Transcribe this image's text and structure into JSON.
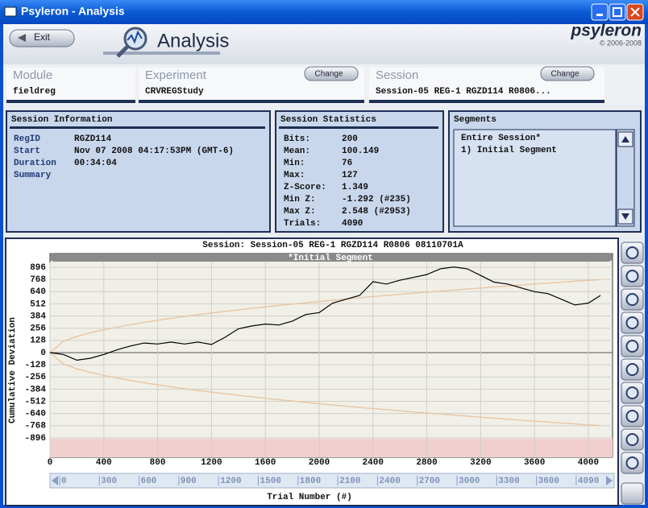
{
  "window": {
    "title": "Psyleron - Analysis"
  },
  "header": {
    "exit": "Exit",
    "title": "Analysis",
    "brand": "psyleron",
    "copyright": "© 2006-2008"
  },
  "selectors": [
    {
      "label": "Module",
      "value": "fieldreg"
    },
    {
      "label": "Experiment",
      "value": "CRVREGStudy",
      "button": "Change"
    },
    {
      "label": "Session",
      "value": "Session-05 REG-1 RGZD114 R0806...",
      "button": "Change"
    }
  ],
  "session_info": {
    "title": "Session Information",
    "rows": [
      {
        "label": "RegID",
        "value": "RGZD114"
      },
      {
        "label": "Start",
        "value": "Nov 07 2008 04:17:53PM (GMT-6)"
      },
      {
        "label": "Duration",
        "value": "00:34:04"
      },
      {
        "label": "Summary",
        "value": ""
      }
    ]
  },
  "session_stats": {
    "title": "Session Statistics",
    "rows": [
      {
        "label": "Bits:",
        "value": "200"
      },
      {
        "label": "Mean:",
        "value": "100.149"
      },
      {
        "label": "Min:",
        "value": "76"
      },
      {
        "label": "Max:",
        "value": "127"
      },
      {
        "label": "Z-Score:",
        "value": "1.349"
      },
      {
        "label": "Min Z:",
        "value": "-1.292 (#235)"
      },
      {
        "label": "Max Z:",
        "value": "2.548 (#2953)"
      },
      {
        "label": "Trials:",
        "value": "4090"
      }
    ]
  },
  "segments": {
    "title": "Segments",
    "items": [
      "Entire Session*",
      "1) Initial Segment"
    ]
  },
  "scroll_labels": [
    "0",
    "300",
    "600",
    "900",
    "1200",
    "1500",
    "1800",
    "2100",
    "2400",
    "2700",
    "3000",
    "3300",
    "3600",
    "4090"
  ],
  "chart_data": {
    "type": "line",
    "title": "Session: Session-05 REG-1 RGZD114 R0806 08110701A",
    "segment_label": "*Initial Segment",
    "xlabel": "Trial Number (#)",
    "ylabel": "Cumulative Deviation",
    "x": [
      0,
      100,
      200,
      300,
      400,
      500,
      600,
      700,
      800,
      900,
      1000,
      1100,
      1200,
      1300,
      1400,
      1500,
      1600,
      1700,
      1800,
      1900,
      2000,
      2100,
      2200,
      2300,
      2400,
      2500,
      2600,
      2700,
      2800,
      2900,
      3000,
      3100,
      3200,
      3300,
      3400,
      3500,
      3600,
      3700,
      3800,
      3900,
      4000,
      4090
    ],
    "series": [
      {
        "color": "#e8c8a8",
        "values": [
          0,
          120,
          170,
          208,
          240,
          268,
          294,
          317,
          339,
          360,
          379,
          398,
          416,
          433,
          449,
          465,
          480,
          495,
          509,
          523,
          537,
          550,
          563,
          576,
          588,
          600,
          612,
          624,
          635,
          646,
          657,
          668,
          679,
          689,
          700,
          710,
          720,
          730,
          740,
          749,
          759,
          767
        ]
      },
      {
        "color": "#e8c8a8",
        "values": [
          0,
          -120,
          -170,
          -208,
          -240,
          -268,
          -294,
          -317,
          -339,
          -360,
          -379,
          -398,
          -416,
          -433,
          -449,
          -465,
          -480,
          -495,
          -509,
          -523,
          -537,
          -550,
          -563,
          -576,
          -588,
          -600,
          -612,
          -624,
          -635,
          -646,
          -657,
          -668,
          -679,
          -689,
          -700,
          -710,
          -720,
          -730,
          -740,
          -749,
          -759,
          -767
        ]
      },
      {
        "color": "#000000",
        "values": [
          0,
          -20,
          -80,
          -60,
          -20,
          30,
          70,
          100,
          90,
          110,
          90,
          110,
          85,
          160,
          250,
          280,
          300,
          290,
          330,
          400,
          420,
          520,
          560,
          600,
          745,
          720,
          760,
          790,
          820,
          880,
          900,
          880,
          810,
          740,
          720,
          680,
          640,
          620,
          560,
          500,
          520,
          600
        ]
      }
    ],
    "xlim": [
      0,
      4180
    ],
    "ylim": [
      -1100,
      1040
    ],
    "xticks": [
      0,
      400,
      800,
      1200,
      1600,
      2000,
      2400,
      2800,
      3200,
      3600,
      4000
    ],
    "yticks": [
      896,
      768,
      640,
      512,
      384,
      256,
      128,
      0,
      -128,
      -256,
      -384,
      -512,
      -640,
      -768,
      -896
    ],
    "grid": true
  }
}
